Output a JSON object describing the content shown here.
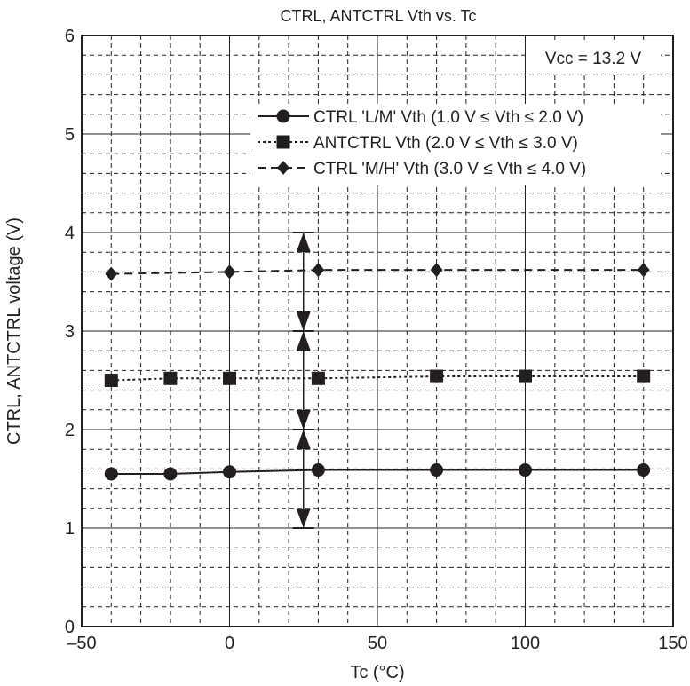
{
  "chart_data": {
    "type": "line",
    "title": "CTRL, ANTCTRL Vth vs. Tc",
    "xlabel": "Tc   (°C)",
    "ylabel": "CTRL, ANTCTRL voltage   (V)",
    "xlim": [
      -50,
      150
    ],
    "ylim": [
      0,
      6
    ],
    "x_major_ticks": [
      -50,
      0,
      50,
      100,
      150
    ],
    "x_tick_labels": [
      "–50",
      "0",
      "50",
      "100",
      "150"
    ],
    "x_minor_step": 10,
    "y_major_ticks": [
      0,
      1,
      2,
      3,
      4,
      5,
      6
    ],
    "y_tick_labels": [
      "0",
      "1",
      "2",
      "3",
      "4",
      "5",
      "6"
    ],
    "y_minor_step": 0.2,
    "grid": true,
    "legend_position": "top-right",
    "annotation": "Vcc = 13.2 V",
    "series": [
      {
        "name": "CTRL 'L/M' Vth (1.0 V ≤ Vth ≤ 2.0 V)",
        "marker": "circle",
        "line": "solid",
        "x": [
          -40,
          -20,
          0,
          30,
          70,
          100,
          140
        ],
        "y": [
          1.55,
          1.55,
          1.57,
          1.59,
          1.59,
          1.59,
          1.59
        ]
      },
      {
        "name": "ANTCTRL Vth (2.0 V ≤ Vth ≤ 3.0 V)",
        "marker": "square",
        "line": "dotted",
        "x": [
          -40,
          -20,
          0,
          30,
          70,
          100,
          140
        ],
        "y": [
          2.5,
          2.52,
          2.52,
          2.52,
          2.54,
          2.54,
          2.54
        ]
      },
      {
        "name": "CTRL 'M/H' Vth (3.0 V ≤ Vth ≤ 4.0 V)",
        "marker": "diamond",
        "line": "dashed",
        "x": [
          -40,
          0,
          30,
          70,
          140
        ],
        "y": [
          3.58,
          3.6,
          3.62,
          3.62,
          3.62
        ]
      }
    ],
    "spec_ranges": {
      "x": 25,
      "ranges": [
        [
          1.0,
          2.0
        ],
        [
          2.0,
          3.0
        ],
        [
          3.0,
          4.0
        ]
      ]
    }
  }
}
